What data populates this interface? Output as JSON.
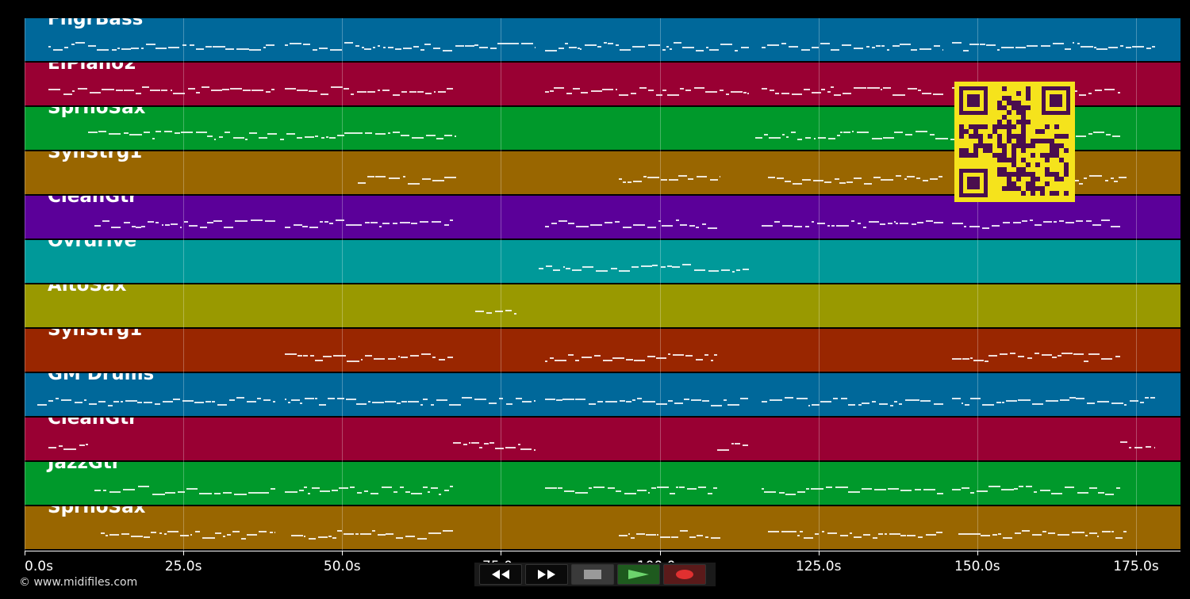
{
  "tracks": [
    {
      "name": "FngrBass",
      "color": "#00689a"
    },
    {
      "name": "ElPiano2",
      "color": "#990033"
    },
    {
      "name": "SprnoSax",
      "color": "#00992b"
    },
    {
      "name": "SynStrg1",
      "color": "#996600"
    },
    {
      "name": "CleanGtr",
      "color": "#5b0099"
    },
    {
      "name": "Ovrdrive",
      "color": "#009999"
    },
    {
      "name": "AltoSax",
      "color": "#999900"
    },
    {
      "name": "SynStrg1",
      "color": "#992600"
    },
    {
      "name": "GM Drums",
      "color": "#00689a"
    },
    {
      "name": "CleanGtr",
      "color": "#990033"
    },
    {
      "name": "JazzGtr",
      "color": "#00992b"
    },
    {
      "name": "SprnoSax",
      "color": "#996600"
    }
  ],
  "axis": {
    "ticks": [
      "0.0s",
      "25.0s",
      "50.0s",
      "75.0s",
      "100.0s",
      "125.0s",
      "150.0s",
      "175.0s"
    ],
    "tick_seconds": [
      0,
      25,
      50,
      75,
      100,
      125,
      150,
      175
    ],
    "max_seconds": 182
  },
  "copyright": "© www.midifiles.com",
  "transport": {
    "rewind_icon": "rewind-icon",
    "forward_icon": "fast-forward-icon",
    "stop_icon": "stop-icon",
    "play_icon": "play-icon",
    "record_icon": "record-icon"
  },
  "note_segments": [
    [
      [
        3.8,
        39.5
      ],
      [
        41,
        80.5
      ],
      [
        82,
        114
      ],
      [
        116,
        144.7
      ],
      [
        146,
        178
      ]
    ],
    [
      [
        3.8,
        39.5
      ],
      [
        41,
        67.5
      ],
      [
        82,
        114
      ],
      [
        116,
        144.7
      ],
      [
        146,
        172.5
      ]
    ],
    [
      [
        10,
        68
      ],
      [
        115,
        172.5
      ]
    ],
    [
      [
        52.5,
        68
      ],
      [
        93.5,
        109.5
      ],
      [
        117,
        144.7
      ],
      [
        162,
        173.5
      ]
    ],
    [
      [
        11,
        39.5
      ],
      [
        41,
        67.5
      ],
      [
        82,
        109
      ],
      [
        116,
        144.7
      ],
      [
        146,
        172.5
      ]
    ],
    [
      [
        81,
        114
      ]
    ],
    [
      [
        71,
        77.5
      ]
    ],
    [
      [
        41,
        67.5
      ],
      [
        82,
        109
      ],
      [
        146,
        172.5
      ]
    ],
    [
      [
        2,
        39.5
      ],
      [
        41,
        80.5
      ],
      [
        82,
        114
      ],
      [
        116,
        144.7
      ],
      [
        146,
        178
      ]
    ],
    [
      [
        3.8,
        10
      ],
      [
        67.5,
        80.5
      ],
      [
        109,
        114
      ],
      [
        172.5,
        178
      ]
    ],
    [
      [
        11,
        39.5
      ],
      [
        41,
        67.5
      ],
      [
        82,
        109
      ],
      [
        116,
        144.7
      ],
      [
        146,
        172.5
      ]
    ],
    [
      [
        12,
        39.5
      ],
      [
        42,
        67.5
      ],
      [
        93.5,
        109.5
      ],
      [
        117,
        144.7
      ],
      [
        147,
        173.5
      ]
    ]
  ]
}
